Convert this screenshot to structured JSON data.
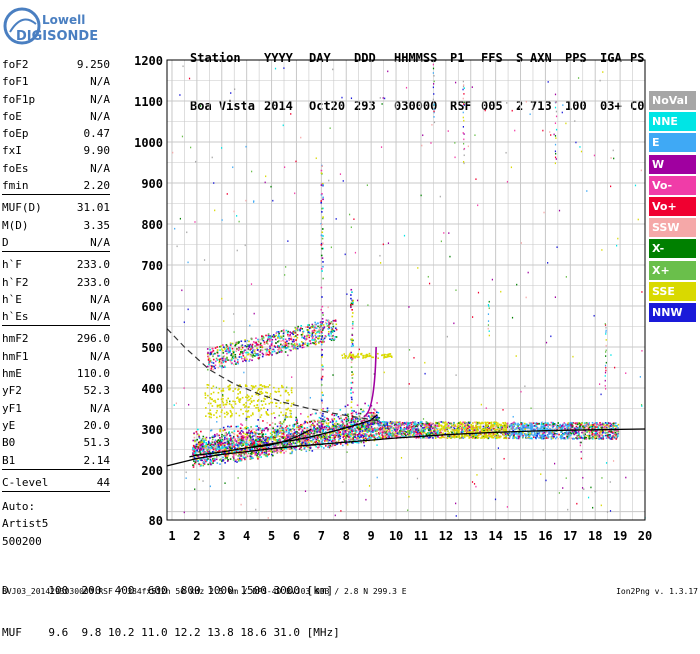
{
  "logo": {
    "top": "Lowell",
    "bottom": "DIGISONDE"
  },
  "header": {
    "labels": [
      "Station",
      "YYYY",
      "DAY",
      "DDD",
      "HHMMSS",
      "P1",
      "FFS",
      "S",
      "AXN",
      "PPS",
      "IGA",
      "PS"
    ],
    "values": [
      "Boa Vista",
      "2014",
      "Oct20",
      "293",
      "030000",
      "RSF",
      "005",
      "2",
      "713",
      "100",
      "03+",
      "C0"
    ]
  },
  "params": [
    [
      {
        "k": "foF2",
        "v": "9.250"
      },
      {
        "k": "foF1",
        "v": "N/A"
      },
      {
        "k": "foF1p",
        "v": "N/A"
      },
      {
        "k": "foE",
        "v": "N/A"
      },
      {
        "k": "foEp",
        "v": "0.47"
      },
      {
        "k": "fxI",
        "v": "9.90"
      },
      {
        "k": "foEs",
        "v": "N/A"
      },
      {
        "k": "fmin",
        "v": "2.20"
      }
    ],
    [
      {
        "k": "MUF(D)",
        "v": "31.01"
      },
      {
        "k": "M(D)",
        "v": "3.35"
      },
      {
        "k": "D",
        "v": "N/A"
      }
    ],
    [
      {
        "k": "h`F",
        "v": "233.0"
      },
      {
        "k": "h`F2",
        "v": "233.0"
      },
      {
        "k": "h`E",
        "v": "N/A"
      },
      {
        "k": "h`Es",
        "v": "N/A"
      }
    ],
    [
      {
        "k": "hmF2",
        "v": "296.0"
      },
      {
        "k": "hmF1",
        "v": "N/A"
      },
      {
        "k": "hmE",
        "v": "110.0"
      },
      {
        "k": "yF2",
        "v": "52.3"
      },
      {
        "k": "yF1",
        "v": "N/A"
      },
      {
        "k": "yE",
        "v": "20.0"
      },
      {
        "k": "B0",
        "v": "51.3"
      },
      {
        "k": "B1",
        "v": "2.14"
      }
    ],
    [
      {
        "k": "C-level",
        "v": "44"
      }
    ]
  ],
  "auto": [
    "Auto:",
    "Artist5",
    "500200"
  ],
  "legend": [
    {
      "label": "NoVal",
      "color": "#a6a6a6"
    },
    {
      "label": "NNE",
      "color": "#00e5e5"
    },
    {
      "label": "E",
      "color": "#3fa9f5"
    },
    {
      "label": "W",
      "color": "#a000a0"
    },
    {
      "label": "Vo-",
      "color": "#f03ca8"
    },
    {
      "label": "Vo+",
      "color": "#f00030"
    },
    {
      "label": "SSW",
      "color": "#f5a8a8"
    },
    {
      "label": "X-",
      "color": "#008000"
    },
    {
      "label": "X+",
      "color": "#6abf4b"
    },
    {
      "label": "SSE",
      "color": "#d9d900"
    },
    {
      "label": "NNW",
      "color": "#1a1ad9"
    }
  ],
  "bottom": {
    "d_label": "D",
    "d_values": [
      "100",
      "200",
      "400",
      "600",
      "800",
      "1000",
      "1500",
      "3000"
    ],
    "d_unit": "[km]",
    "muf_label": "MUF",
    "muf_values": [
      "9.6",
      "9.8",
      "10.2",
      "11.0",
      "12.2",
      "13.8",
      "18.6",
      "31.0"
    ],
    "muf_unit": "[MHz]"
  },
  "footer": {
    "left": "BVJ03_2014293030000.RSF / 384fx512h 50 kHz 2.5 km / DPS-4D BVJ03 003 / 2.8 N 299.3 E",
    "right": "Ion2Png v. 1.3.17"
  },
  "chart_data": {
    "type": "scatter",
    "x": [
      1,
      2,
      3,
      4,
      5,
      6,
      7,
      8,
      9,
      10,
      11,
      12,
      13,
      14,
      15,
      16,
      17,
      18,
      19,
      20
    ],
    "xlim": [
      0.8,
      20
    ],
    "ylim": [
      80,
      1200
    ],
    "yticks": [
      80,
      200,
      300,
      400,
      500,
      600,
      700,
      800,
      900,
      1000,
      1100,
      1200
    ],
    "grid": true,
    "trace_x": [
      1.7,
      2.0,
      2.5,
      3.0,
      3.5,
      4.0,
      4.5,
      5.0,
      5.5,
      6.0,
      6.5,
      7.0,
      7.5,
      8.0,
      8.5,
      9.0,
      9.25
    ],
    "trace_y": [
      232,
      236,
      240,
      244,
      249,
      254,
      259,
      264,
      269,
      274,
      280,
      287,
      295,
      303,
      312,
      322,
      335
    ],
    "profile_x": [
      0.8,
      2,
      3,
      4,
      5,
      6,
      7,
      8,
      9,
      10,
      11,
      12,
      13,
      14,
      15,
      16,
      17,
      18,
      19,
      20
    ],
    "profile_y": [
      210,
      228,
      238,
      245,
      252,
      258,
      263,
      268,
      273,
      278,
      282,
      286,
      289,
      292,
      294,
      296,
      297,
      298,
      299,
      300
    ],
    "dashed_x": [
      0.8,
      1.5,
      2.5,
      3.5,
      4.5,
      5.5,
      6.5,
      7.5,
      8.5,
      9.3
    ],
    "dashed_y": [
      545,
      500,
      445,
      410,
      385,
      365,
      350,
      338,
      328,
      320
    ]
  }
}
